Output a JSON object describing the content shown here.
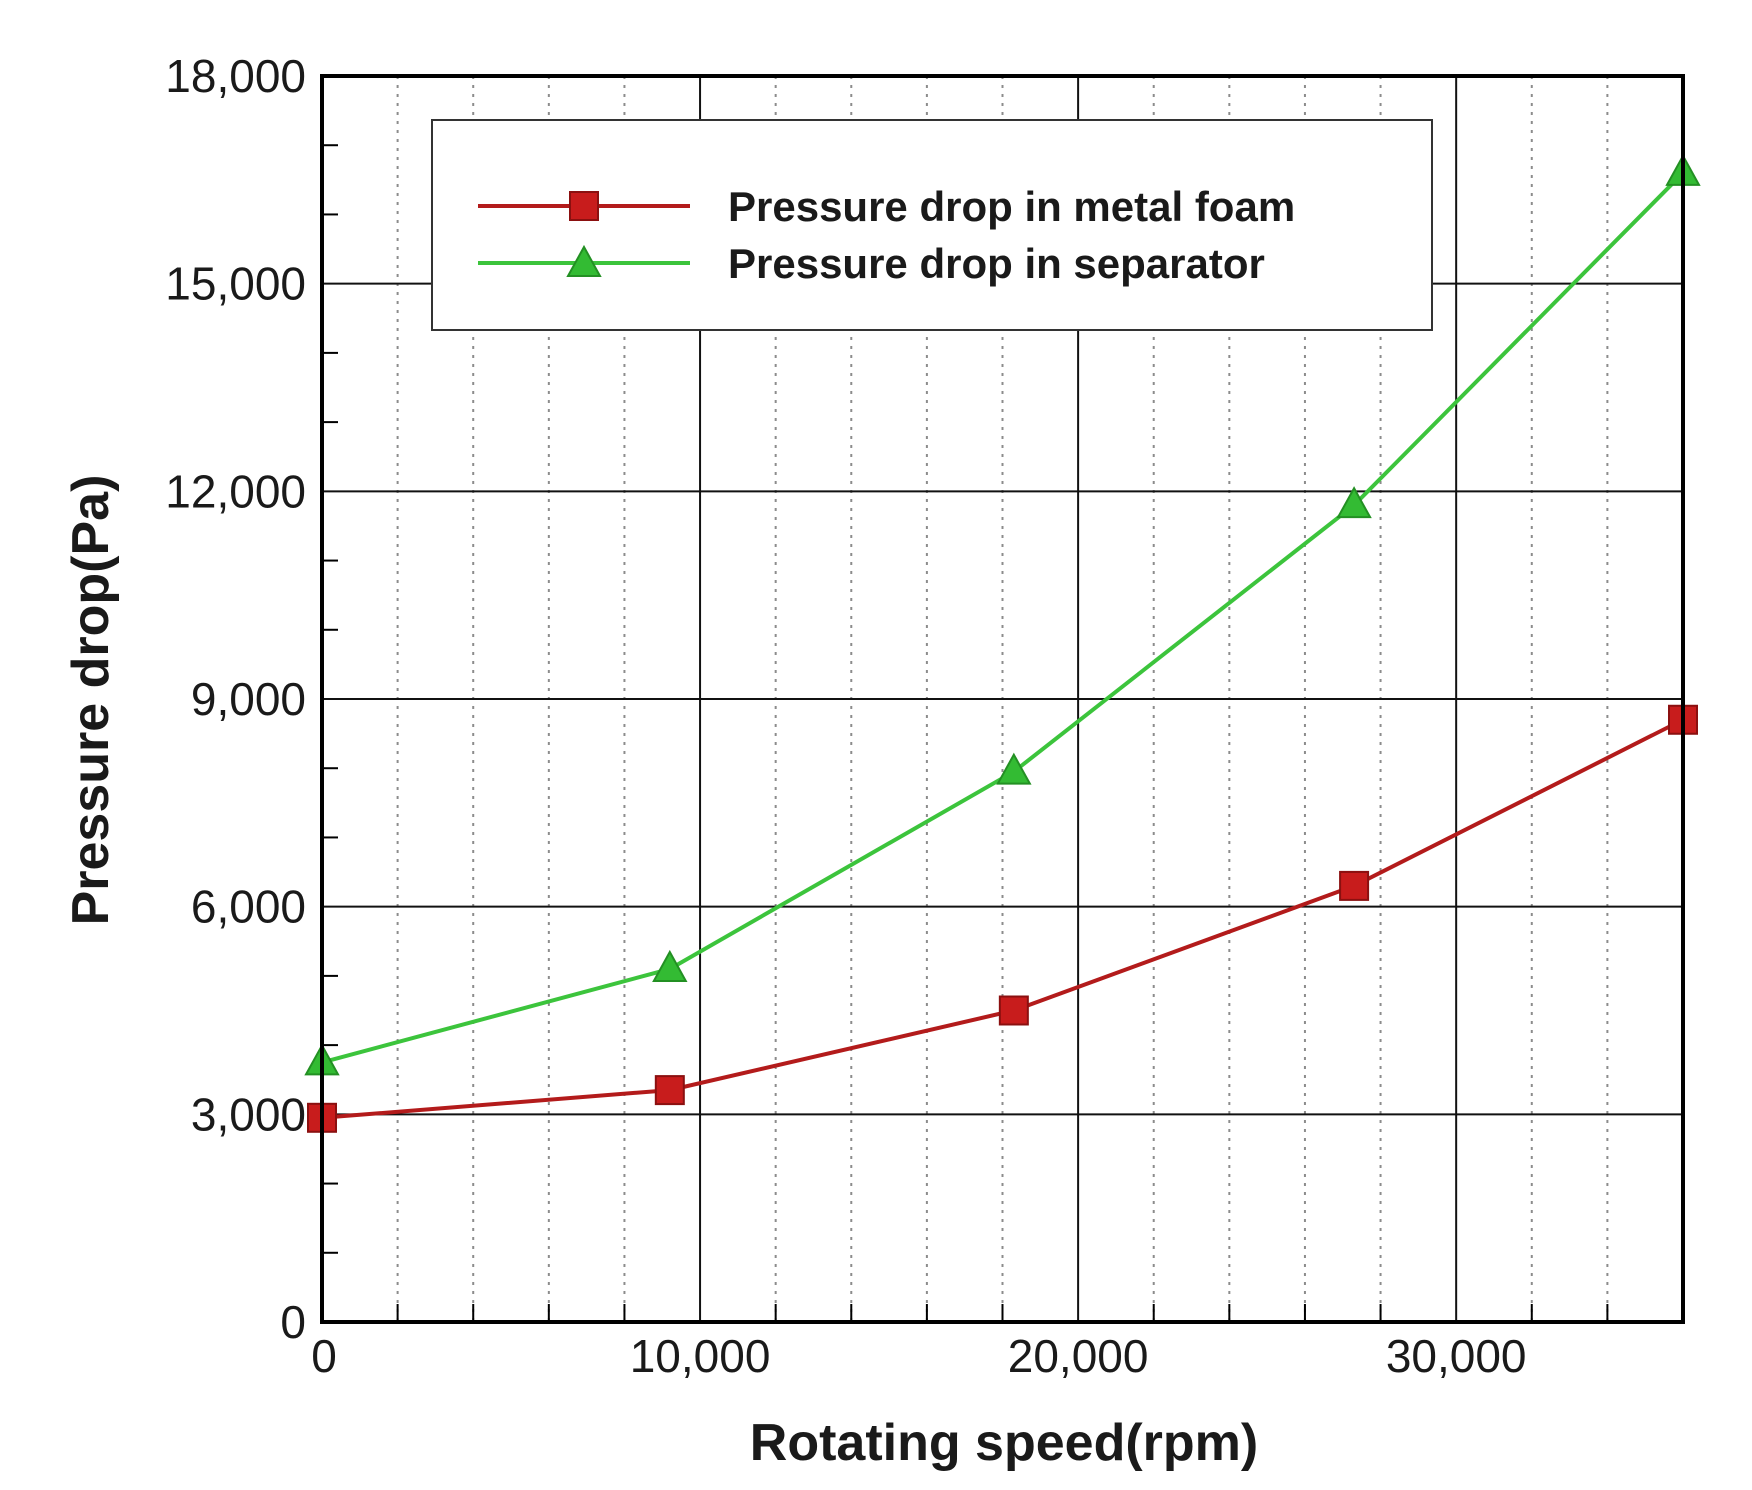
{
  "chart_data": {
    "type": "line",
    "title": "",
    "xlabel": "Rotating speed(rpm)",
    "ylabel": "Pressure drop(Pa)",
    "xlim": [
      0,
      36000
    ],
    "ylim": [
      0,
      18000
    ],
    "grid": true,
    "legend_position": "top-center",
    "x_major_ticks": [
      0,
      10000,
      20000,
      30000
    ],
    "x_tick_labels": [
      "0",
      "10,000",
      "20,000",
      "30,000"
    ],
    "y_major_ticks": [
      0,
      3000,
      6000,
      9000,
      12000,
      15000,
      18000
    ],
    "y_tick_labels": [
      "0",
      "3,000",
      "6,000",
      "9,000",
      "12,000",
      "15,000",
      "18,000"
    ],
    "series": [
      {
        "name": "Pressure drop in metal foam",
        "color": "#b31b1b",
        "marker": "square",
        "x": [
          0,
          9200,
          18300,
          27300,
          36000
        ],
        "y": [
          2950,
          3350,
          4500,
          6300,
          8700
        ]
      },
      {
        "name": "Pressure drop in separator",
        "color": "#3cc43c",
        "marker": "triangle",
        "x": [
          0,
          9200,
          18300,
          27300,
          36000
        ],
        "y": [
          3750,
          5100,
          7950,
          11800,
          16600
        ]
      }
    ]
  }
}
